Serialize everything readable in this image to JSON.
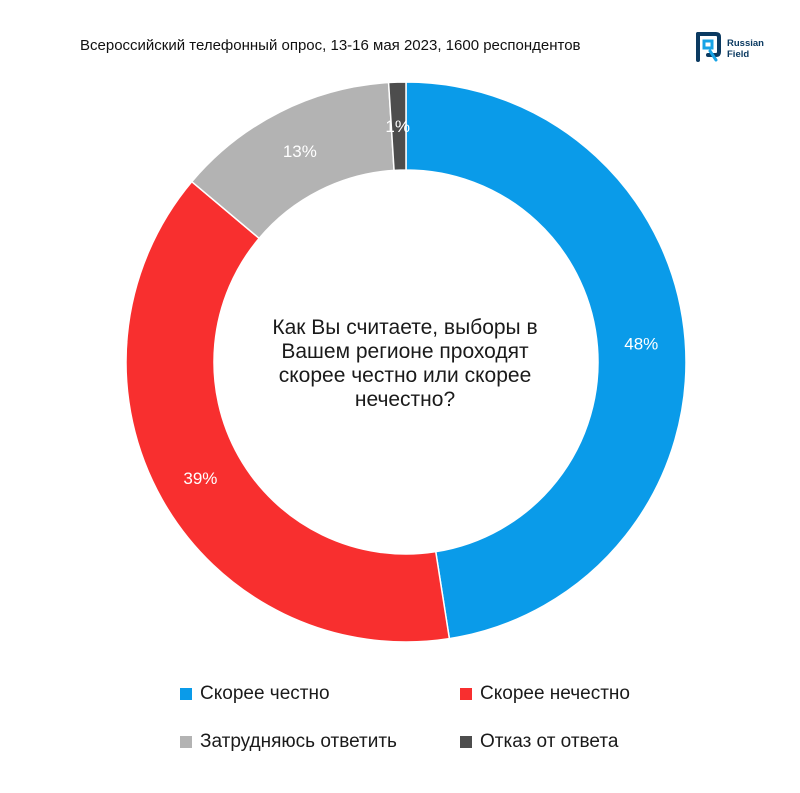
{
  "subtitle": "Всероссийский телефонный опрос, 13-16 мая 2023, 1600 респондентов",
  "logo": {
    "line1": "Russian",
    "line2": "Field",
    "icon": "russian-field-logo-icon",
    "color": "#0b3a61",
    "accent": "#16a3e6"
  },
  "chart_data": {
    "type": "pie",
    "donut": true,
    "center_text": "Как Вы считаете, выборы в Вашем регионе проходят скорее честно или скорее нечестно?",
    "categories": [
      "Скорее честно",
      "Скорее нечестно",
      "Затрудняюсь ответить",
      "Отказ от ответа"
    ],
    "values": [
      48,
      39,
      13,
      1
    ],
    "labels": [
      "48%",
      "39%",
      "13%",
      "1%"
    ],
    "colors": [
      "#0a9be9",
      "#f82f2f",
      "#b3b3b3",
      "#4d4d4d"
    ],
    "unit": "%",
    "legend_position": "bottom"
  }
}
